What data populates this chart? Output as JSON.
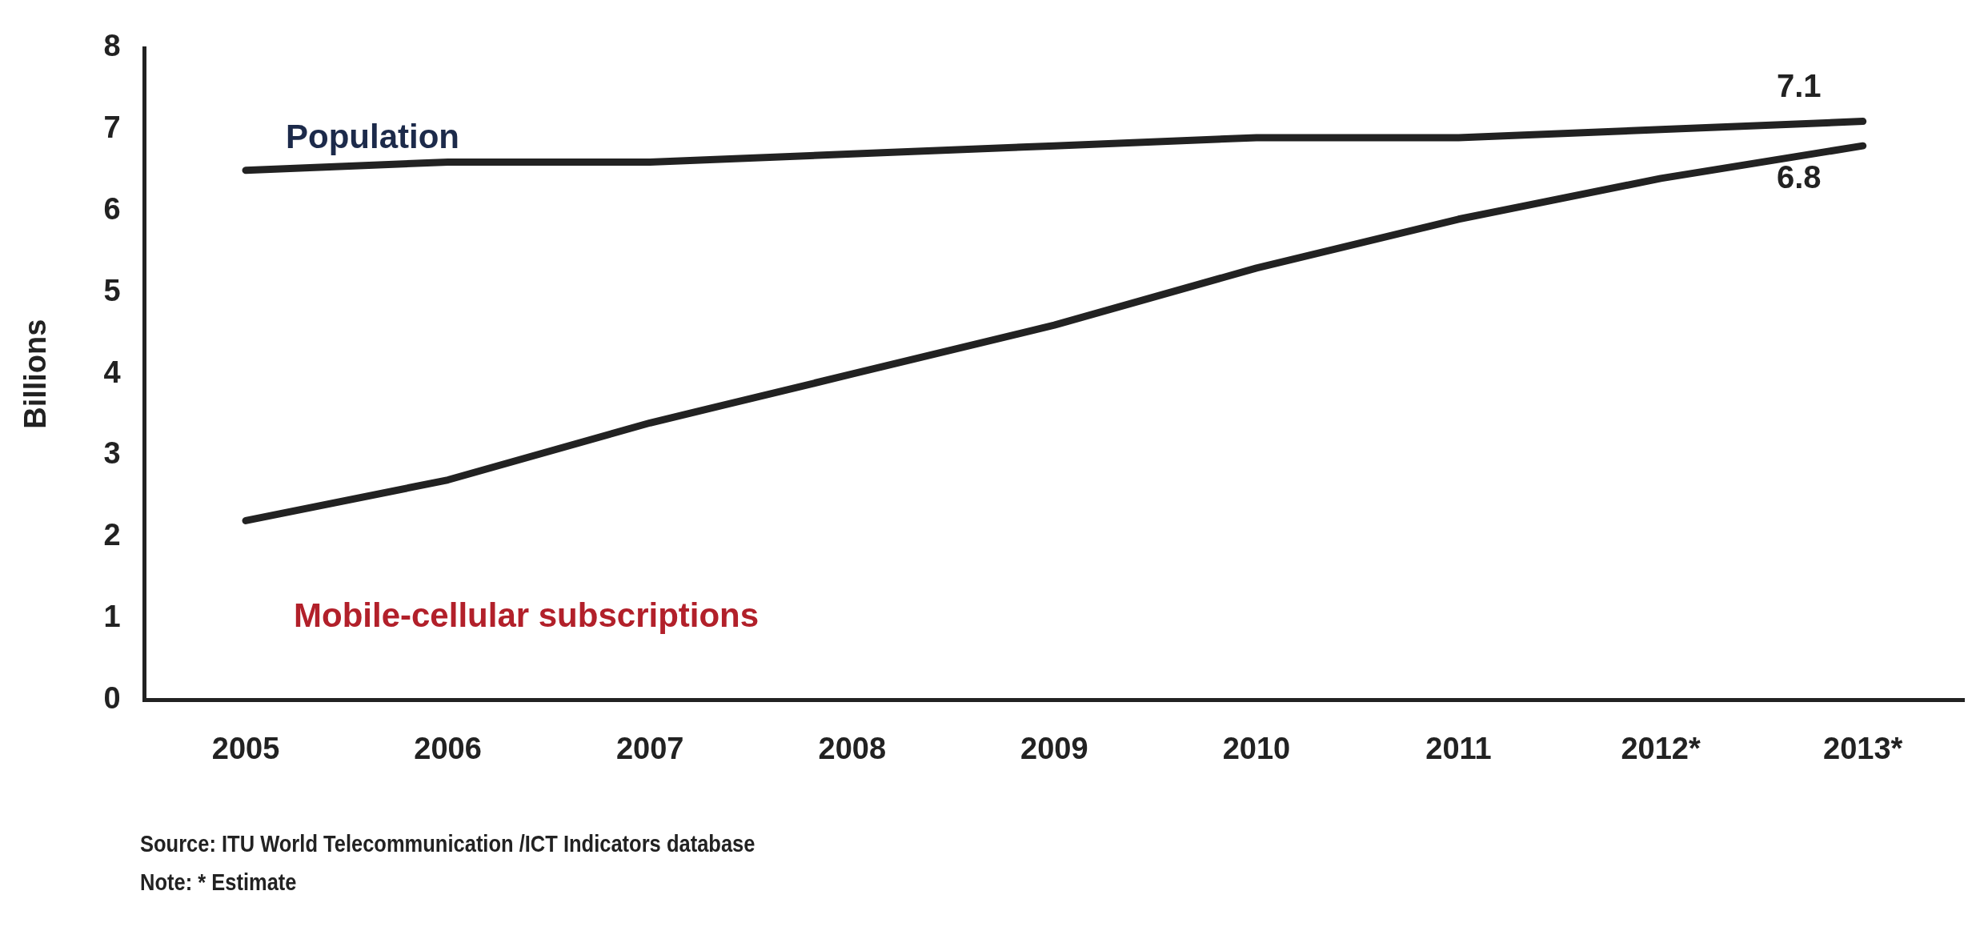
{
  "chart_data": {
    "type": "line",
    "ylabel": "Billions",
    "categories": [
      "2005",
      "2006",
      "2007",
      "2008",
      "2009",
      "2010",
      "2011",
      "2012*",
      "2013*"
    ],
    "series": [
      {
        "name": "Population",
        "color": "#222222",
        "values": [
          6.5,
          6.6,
          6.6,
          6.7,
          6.8,
          6.9,
          6.9,
          7.0,
          7.1
        ],
        "value_labels": [
          null,
          null,
          null,
          null,
          null,
          null,
          null,
          null,
          "7.1"
        ]
      },
      {
        "name": "Mobile-cellular subscriptions",
        "color": "#222222",
        "values": [
          2.2,
          2.7,
          3.4,
          4.0,
          4.6,
          5.3,
          5.9,
          6.4,
          6.8
        ],
        "value_labels": [
          null,
          null,
          null,
          null,
          null,
          null,
          null,
          null,
          "6.8"
        ]
      }
    ],
    "ylim": [
      0,
      8
    ],
    "yticks": [
      0,
      1,
      2,
      3,
      4,
      5,
      6,
      7,
      8
    ],
    "grid": false,
    "legend": false,
    "marker": "none",
    "line_style": "solid",
    "annotations": [
      "Source: ITU World Telecommunication /ICT Indicators database",
      "Note: * Estimate"
    ]
  }
}
